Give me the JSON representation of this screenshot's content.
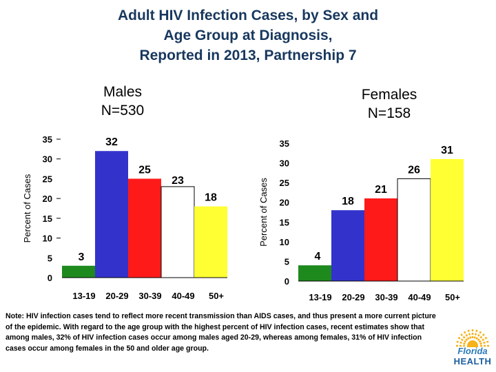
{
  "title": {
    "line1": "Adult HIV Infection Cases, by Sex and",
    "line2": "Age Group at Diagnosis,",
    "line3": "Reported in 2013, Partnership 7"
  },
  "chart_data": [
    {
      "type": "bar",
      "title_line1": "Males",
      "title_line2": "N=530",
      "ylabel": "Percent of Cases",
      "xlabel": "",
      "categories": [
        "13-19",
        "20-29",
        "30-39",
        "40-49",
        "50+"
      ],
      "values": [
        3,
        32,
        25,
        23,
        18
      ],
      "ylim": [
        0,
        35
      ],
      "yticks": [
        0,
        5,
        10,
        15,
        20,
        25,
        30,
        35
      ],
      "colors": [
        "#1e8a1e",
        "#3333cc",
        "#ff1a1a",
        "#ffffff",
        "#ffff33"
      ],
      "grid": false
    },
    {
      "type": "bar",
      "title_line1": "Females",
      "title_line2": "N=158",
      "ylabel": "Percent of Cases",
      "xlabel": "",
      "categories": [
        "13-19",
        "20-29",
        "30-39",
        "40-49",
        "50+"
      ],
      "values": [
        4,
        18,
        21,
        26,
        31
      ],
      "ylim": [
        0,
        35
      ],
      "yticks": [
        0,
        5,
        10,
        15,
        20,
        25,
        30,
        35
      ],
      "colors": [
        "#1e8a1e",
        "#3333cc",
        "#ff1a1a",
        "#ffffff",
        "#ffff33"
      ],
      "grid": false
    }
  ],
  "note": "Note: HIV infection cases tend to reflect more recent transmission than AIDS cases, and thus present a more current picture of the epidemic. With regard to the age group with the highest percent of HIV infection cases, recent estimates show that among males, 32% of HIV infection cases occur among males aged 20-29, whereas among females, 31% of HIV infection cases occur among females in the 50 and older age group.",
  "logo": {
    "line1": "Florida",
    "line2": "HEALTH",
    "sun_color": "#f6b21a",
    "text_color": "#1b5e9e"
  }
}
